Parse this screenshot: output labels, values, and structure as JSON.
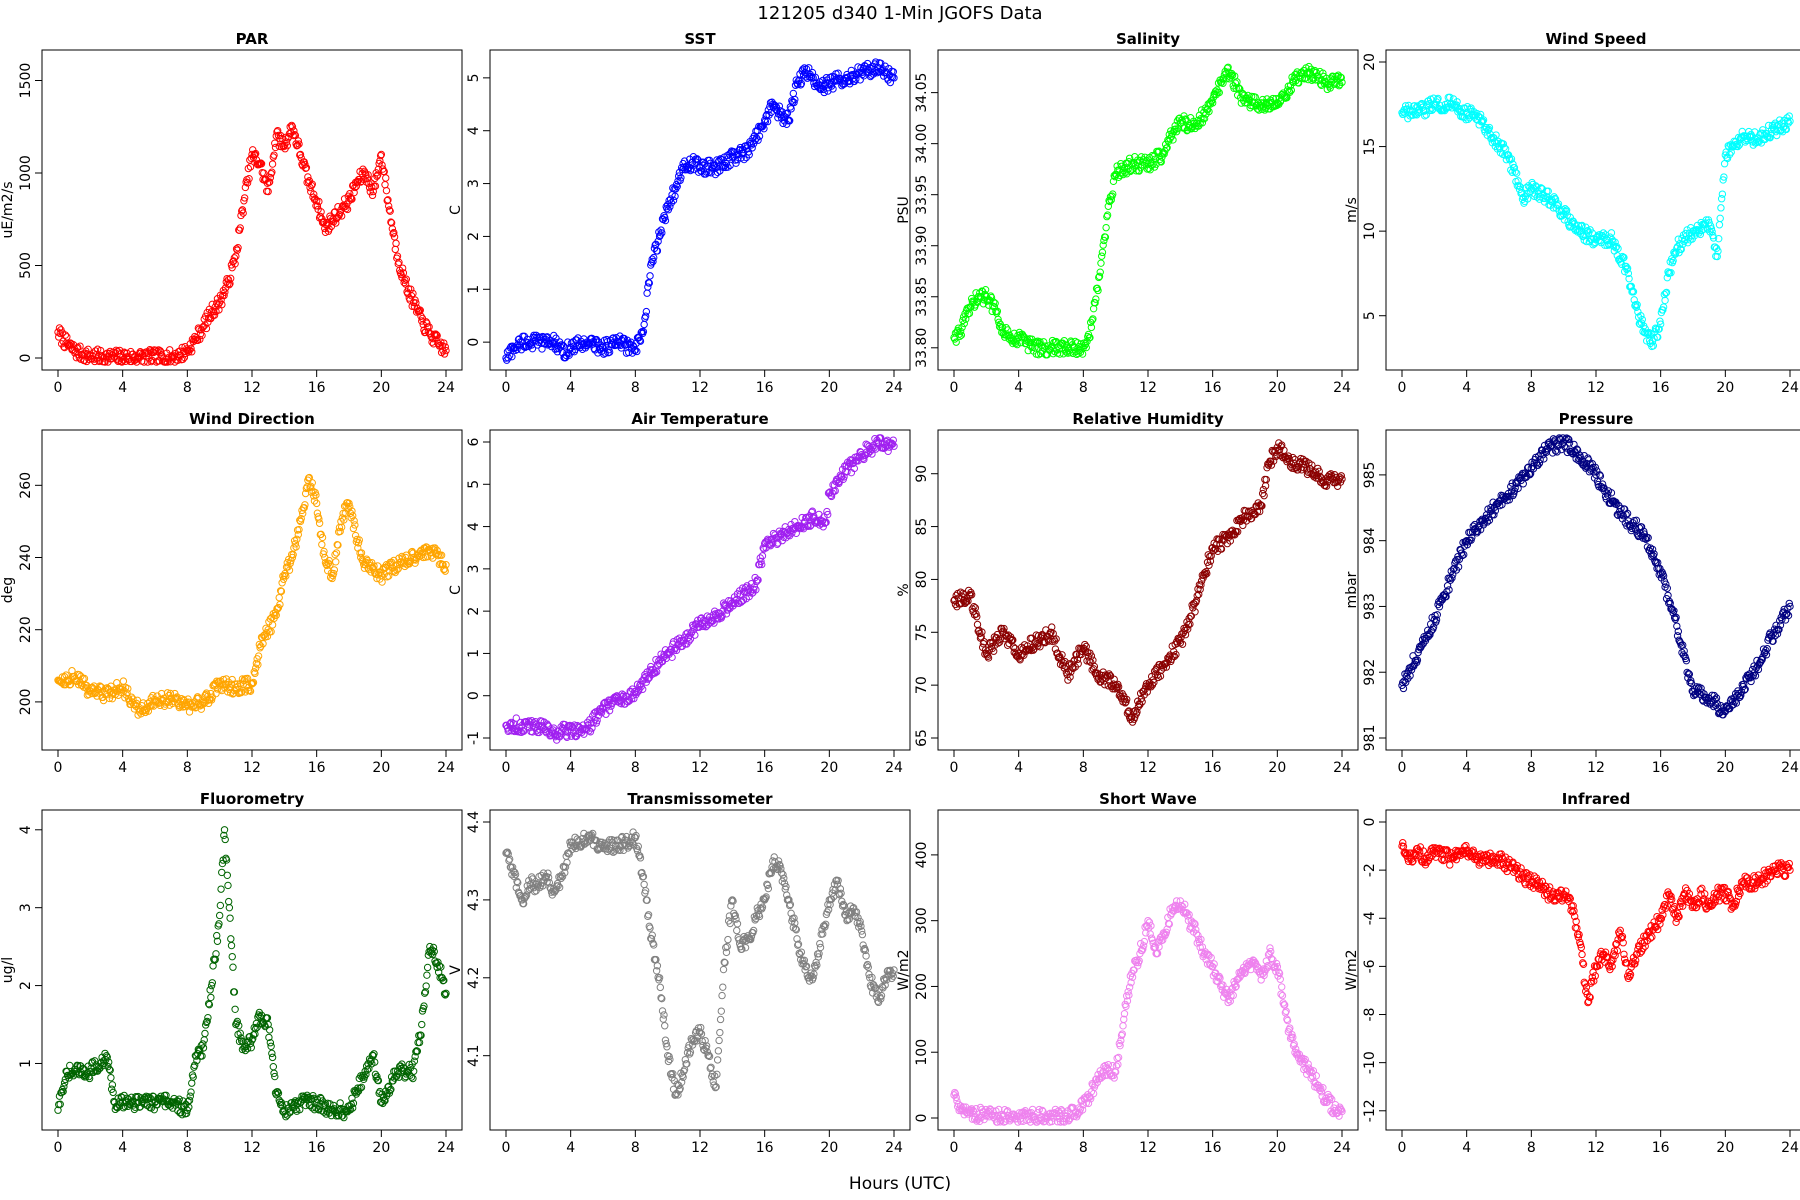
{
  "figure": {
    "title": "121205   d340   1-Min  JGOFS Data",
    "xlabel": "Hours (UTC)"
  },
  "chart_data": [
    {
      "type": "scatter",
      "title": "PAR",
      "ylabel": "uE/m2/s",
      "color": "#ff0000",
      "xlim": [
        0,
        24
      ],
      "ylim": [
        0,
        1600
      ],
      "xticks": [
        0,
        4,
        8,
        12,
        16,
        20,
        24
      ],
      "yticks": [
        0,
        500,
        1000,
        1500
      ],
      "x": [
        0,
        0.5,
        1,
        1.5,
        2,
        3,
        4,
        5,
        6,
        7,
        7.5,
        8,
        8.5,
        9,
        9.5,
        10,
        10.5,
        11,
        11.5,
        12,
        12.5,
        13,
        13.5,
        14,
        14.5,
        15,
        15.5,
        16,
        16.5,
        17,
        17.5,
        18,
        18.5,
        19,
        19.5,
        20,
        20.5,
        21,
        21.5,
        22,
        22.5,
        23,
        23.5,
        24
      ],
      "y": [
        140,
        80,
        40,
        20,
        10,
        5,
        5,
        5,
        5,
        5,
        15,
        40,
        100,
        170,
        250,
        300,
        400,
        550,
        850,
        1100,
        1050,
        900,
        1200,
        1150,
        1250,
        1100,
        950,
        850,
        700,
        750,
        800,
        850,
        950,
        1000,
        900,
        1100,
        800,
        550,
        400,
        300,
        200,
        130,
        80,
        40
      ]
    },
    {
      "type": "scatter",
      "title": "SST",
      "ylabel": "C",
      "color": "#0000ff",
      "xlim": [
        0,
        24
      ],
      "ylim": [
        -0.3,
        5.3
      ],
      "xticks": [
        0,
        4,
        8,
        12,
        16,
        20,
        24
      ],
      "yticks": [
        0,
        1,
        2,
        3,
        4,
        5
      ],
      "x": [
        0,
        0.5,
        1,
        2,
        3,
        3.5,
        4,
        5,
        6,
        7,
        8,
        8.5,
        9,
        9.5,
        10,
        10.5,
        11,
        11.5,
        12,
        13,
        14,
        15,
        16,
        16.5,
        17,
        17.5,
        18,
        18.5,
        19,
        19.5,
        20,
        21,
        22,
        23,
        23.5,
        24
      ],
      "y": [
        -0.3,
        -0.1,
        0,
        0,
        0,
        -0.2,
        -0.1,
        0,
        -0.1,
        0,
        -0.15,
        0.2,
        1.5,
        2.0,
        2.6,
        2.9,
        3.3,
        3.4,
        3.3,
        3.3,
        3.5,
        3.6,
        4.2,
        4.5,
        4.3,
        4.2,
        4.9,
        5.1,
        5.0,
        4.8,
        4.9,
        5.0,
        5.1,
        5.2,
        5.1,
        5.0
      ]
    },
    {
      "type": "scatter",
      "title": "Salinity",
      "ylabel": "PSU",
      "color": "#00ff00",
      "xlim": [
        0,
        24
      ],
      "ylim": [
        33.79,
        34.08
      ],
      "xticks": [
        0,
        4,
        8,
        12,
        16,
        20,
        24
      ],
      "yticks": [
        33.8,
        33.85,
        33.9,
        33.95,
        34.0,
        34.05
      ],
      "ytick_labels": [
        "33.80",
        "33.85",
        "33.90",
        "33.95",
        "34.00",
        "34.05"
      ],
      "x": [
        0,
        0.5,
        1,
        1.5,
        2,
        2.5,
        3,
        3.5,
        4,
        5,
        6,
        7,
        8,
        8.5,
        9,
        9.5,
        10,
        11,
        12,
        13,
        13.5,
        14,
        15,
        16,
        16.5,
        17,
        18,
        19,
        20,
        21,
        21.5,
        22,
        23,
        24
      ],
      "y": [
        33.81,
        33.82,
        33.84,
        33.85,
        33.85,
        33.84,
        33.82,
        33.81,
        33.81,
        33.8,
        33.8,
        33.8,
        33.8,
        33.82,
        33.87,
        33.93,
        33.97,
        33.98,
        33.98,
        33.99,
        34.01,
        34.02,
        34.02,
        34.04,
        34.06,
        34.07,
        34.04,
        34.04,
        34.04,
        34.06,
        34.07,
        34.07,
        34.06,
        34.06
      ]
    },
    {
      "type": "scatter",
      "title": "Wind Speed",
      "ylabel": "m/s",
      "color": "#00ffff",
      "xlim": [
        0,
        24
      ],
      "ylim": [
        2.5,
        20
      ],
      "xticks": [
        0,
        4,
        8,
        12,
        16,
        20,
        24
      ],
      "yticks": [
        5,
        10,
        15,
        20
      ],
      "x": [
        0,
        1,
        2,
        3,
        4,
        5,
        6,
        6.5,
        7,
        7.5,
        8,
        9,
        10,
        11,
        12,
        13,
        14,
        14.5,
        15,
        15.5,
        16,
        16.5,
        17,
        17.5,
        18,
        19,
        19.5,
        20,
        20.5,
        21,
        22,
        23,
        24
      ],
      "y": [
        17,
        17,
        17.5,
        17.5,
        17,
        16.5,
        15,
        14.5,
        13.5,
        12,
        12.5,
        12,
        11,
        10,
        9.5,
        9.5,
        7.5,
        5.5,
        4,
        3.5,
        4.5,
        7.5,
        9,
        9.5,
        10,
        10.5,
        8.5,
        14.5,
        15,
        15.5,
        15.5,
        16,
        16.5
      ]
    },
    {
      "type": "scatter",
      "title": "Wind Direction",
      "ylabel": "deg",
      "color": "#ffa500",
      "xlim": [
        0,
        24
      ],
      "ylim": [
        190,
        272
      ],
      "xticks": [
        0,
        4,
        8,
        12,
        16,
        20,
        24
      ],
      "yticks": [
        200,
        220,
        240,
        260
      ],
      "x": [
        0,
        1,
        2,
        3,
        4,
        5,
        6,
        7,
        8,
        9,
        10,
        11,
        12,
        12.5,
        13,
        13.5,
        14,
        14.5,
        15,
        15.5,
        16,
        16.5,
        17,
        17.5,
        18,
        18.5,
        19,
        20,
        21,
        22,
        23,
        24
      ],
      "y": [
        206,
        207,
        203,
        202,
        204,
        198,
        200,
        201,
        199,
        200,
        205,
        204,
        205,
        215,
        220,
        224,
        235,
        240,
        250,
        262,
        255,
        240,
        235,
        250,
        255,
        245,
        238,
        235,
        238,
        240,
        242,
        238
      ]
    },
    {
      "type": "scatter",
      "title": "Air Temperature",
      "ylabel": "C",
      "color": "#a020f0",
      "xlim": [
        0,
        24
      ],
      "ylim": [
        -1,
        6
      ],
      "xticks": [
        0,
        4,
        8,
        12,
        16,
        20,
        24
      ],
      "yticks": [
        -1,
        0,
        1,
        2,
        3,
        4,
        5,
        6
      ],
      "x": [
        0,
        1,
        2,
        3,
        4,
        5,
        6,
        7,
        8,
        9,
        10,
        11,
        12,
        13,
        14,
        15,
        15.5,
        16,
        17,
        18,
        19,
        19.8,
        20,
        20.5,
        21,
        22,
        23,
        24
      ],
      "y": [
        -0.7,
        -0.7,
        -0.7,
        -0.9,
        -0.8,
        -0.8,
        -0.3,
        -0.1,
        0.1,
        0.6,
        1.0,
        1.3,
        1.7,
        1.9,
        2.2,
        2.5,
        2.7,
        3.6,
        3.8,
        4.0,
        4.2,
        4.1,
        4.8,
        5.1,
        5.3,
        5.7,
        6.0,
        5.9
      ]
    },
    {
      "type": "scatter",
      "title": "Relative Humidity",
      "ylabel": "%",
      "color": "#8b0000",
      "xlim": [
        0,
        24
      ],
      "ylim": [
        65,
        93
      ],
      "xticks": [
        0,
        4,
        8,
        12,
        16,
        20,
        24
      ],
      "yticks": [
        65,
        70,
        75,
        80,
        85,
        90
      ],
      "x": [
        0,
        1,
        2,
        3,
        4,
        5,
        6,
        7,
        8,
        9,
        10,
        11,
        12,
        13,
        14,
        15,
        16,
        17,
        18,
        19,
        19.5,
        20,
        21,
        22,
        23,
        24
      ],
      "y": [
        78,
        78.5,
        73,
        75,
        73,
        74,
        75,
        71,
        73.5,
        71,
        70,
        67,
        70,
        72,
        74,
        78,
        83,
        84,
        86,
        87,
        91,
        92.5,
        91,
        90.5,
        89.5,
        89.5
      ]
    },
    {
      "type": "scatter",
      "title": "Pressure",
      "ylabel": "mbar",
      "color": "#000080",
      "xlim": [
        0,
        24
      ],
      "ylim": [
        981,
        985.5
      ],
      "xticks": [
        0,
        4,
        8,
        12,
        16,
        20,
        24
      ],
      "yticks": [
        981,
        982,
        983,
        984,
        985
      ],
      "x": [
        0,
        1,
        2,
        3,
        4,
        5,
        6,
        7,
        8,
        9,
        10,
        11,
        12,
        13,
        14,
        15,
        16,
        17,
        18,
        19,
        20,
        21,
        22,
        23,
        24
      ],
      "y": [
        981.8,
        982.3,
        982.8,
        983.4,
        984.0,
        984.3,
        984.6,
        984.8,
        985.1,
        985.4,
        985.5,
        985.3,
        985.0,
        984.6,
        984.3,
        984.1,
        983.5,
        982.7,
        981.7,
        981.6,
        981.4,
        981.7,
        982.1,
        982.6,
        983.0
      ]
    },
    {
      "type": "scatter",
      "title": "Fluorometry",
      "ylabel": "ug/l",
      "color": "#006400",
      "xlim": [
        0,
        24
      ],
      "ylim": [
        0.3,
        4.1
      ],
      "xticks": [
        0,
        4,
        8,
        12,
        16,
        20,
        24
      ],
      "yticks": [
        1,
        2,
        3,
        4
      ],
      "x": [
        0,
        0.5,
        1,
        2,
        3,
        3.5,
        4,
        5,
        6,
        7,
        8,
        8.5,
        9,
        9.5,
        10,
        10.3,
        10.6,
        11,
        11.5,
        12,
        12.5,
        13,
        13.5,
        14,
        15,
        16,
        17,
        18,
        19,
        19.5,
        20,
        21,
        22,
        22.5,
        23,
        23.5,
        24
      ],
      "y": [
        0.4,
        0.9,
        0.9,
        0.9,
        1.1,
        0.5,
        0.5,
        0.5,
        0.5,
        0.5,
        0.4,
        1.1,
        1.2,
        2.0,
        2.9,
        4.0,
        3.0,
        1.5,
        1.2,
        1.3,
        1.6,
        1.5,
        0.6,
        0.4,
        0.5,
        0.5,
        0.4,
        0.4,
        0.9,
        1.1,
        0.5,
        0.9,
        0.9,
        1.5,
        2.5,
        2.3,
        1.9
      ]
    },
    {
      "type": "scatter",
      "title": "Transmissometer",
      "ylabel": "V",
      "color": "#808080",
      "xlim": [
        0,
        24
      ],
      "ylim": [
        4.02,
        4.4
      ],
      "xticks": [
        0,
        4,
        8,
        12,
        16,
        20,
        24
      ],
      "yticks": [
        4.1,
        4.2,
        4.3,
        4.4
      ],
      "x": [
        0,
        0.5,
        1,
        1.5,
        2,
        2.5,
        3,
        3.5,
        4,
        5,
        6,
        7,
        8,
        8.5,
        9,
        9.5,
        10,
        10.5,
        11,
        11.5,
        12,
        12.5,
        13,
        13.5,
        14,
        14.5,
        15,
        15.5,
        16,
        16.5,
        17,
        17.5,
        18,
        18.5,
        19,
        20,
        20.5,
        21,
        21.5,
        22,
        22.5,
        23,
        23.5,
        24
      ],
      "y": [
        4.36,
        4.33,
        4.3,
        4.32,
        4.32,
        4.33,
        4.31,
        4.33,
        4.37,
        4.38,
        4.37,
        4.37,
        4.38,
        4.33,
        4.25,
        4.2,
        4.1,
        4.05,
        4.08,
        4.12,
        4.13,
        4.1,
        4.06,
        4.22,
        4.3,
        4.24,
        4.25,
        4.28,
        4.3,
        4.35,
        4.34,
        4.3,
        4.25,
        4.21,
        4.2,
        4.3,
        4.32,
        4.28,
        4.29,
        4.26,
        4.2,
        4.17,
        4.2,
        4.21
      ]
    },
    {
      "type": "scatter",
      "title": "Short Wave",
      "ylabel": "W/m2",
      "color": "#ee82ee",
      "xlim": [
        0,
        24
      ],
      "ylim": [
        0,
        450
      ],
      "xticks": [
        0,
        4,
        8,
        12,
        16,
        20,
        24
      ],
      "yticks": [
        0,
        100,
        200,
        300,
        400
      ],
      "x": [
        0,
        0.5,
        1,
        2,
        3,
        4,
        5,
        6,
        7,
        7.5,
        8,
        8.5,
        9,
        9.5,
        10,
        10.5,
        11,
        11.5,
        12,
        12.5,
        13,
        13.5,
        14,
        14.5,
        15,
        15.5,
        16,
        16.5,
        17,
        17.5,
        18,
        18.5,
        19,
        19.5,
        20,
        20.5,
        21,
        21.5,
        22,
        22.5,
        23,
        23.5,
        24
      ],
      "y": [
        35,
        15,
        8,
        3,
        2,
        2,
        2,
        2,
        3,
        8,
        20,
        40,
        60,
        75,
        70,
        150,
        220,
        250,
        300,
        250,
        280,
        320,
        330,
        300,
        280,
        250,
        230,
        200,
        180,
        210,
        220,
        240,
        210,
        250,
        230,
        160,
        110,
        90,
        70,
        50,
        30,
        15,
        10
      ]
    },
    {
      "type": "scatter",
      "title": "Infrared",
      "ylabel": "W/m2",
      "color": "#ff0000",
      "xlim": [
        0,
        24
      ],
      "ylim": [
        -12.3,
        0
      ],
      "xticks": [
        0,
        4,
        8,
        12,
        16,
        20,
        24
      ],
      "yticks": [
        -12,
        -10,
        -8,
        -6,
        -4,
        -2,
        0
      ],
      "x": [
        0,
        0.5,
        1,
        1.5,
        2,
        3,
        4,
        5,
        6,
        7,
        8,
        8.5,
        9,
        10,
        10.5,
        11,
        11.5,
        12,
        12.5,
        13,
        13.5,
        14,
        14.5,
        15,
        15.5,
        16,
        16.5,
        17,
        17.5,
        18,
        18.5,
        19,
        19.5,
        20,
        20.5,
        21,
        22,
        23,
        24
      ],
      "y": [
        -1,
        -1.5,
        -1.2,
        -1.5,
        -1.3,
        -1.5,
        -1.2,
        -1.6,
        -1.5,
        -2.0,
        -2.5,
        -2.5,
        -3.0,
        -3.0,
        -3.5,
        -5.0,
        -7.5,
        -6.0,
        -5.5,
        -6.0,
        -4.5,
        -6.5,
        -5.5,
        -5.0,
        -4.5,
        -4.0,
        -3.0,
        -4.0,
        -3.0,
        -3.5,
        -3.0,
        -3.5,
        -3.0,
        -3.0,
        -3.5,
        -2.5,
        -2.5,
        -2.0,
        -2.0
      ]
    }
  ]
}
